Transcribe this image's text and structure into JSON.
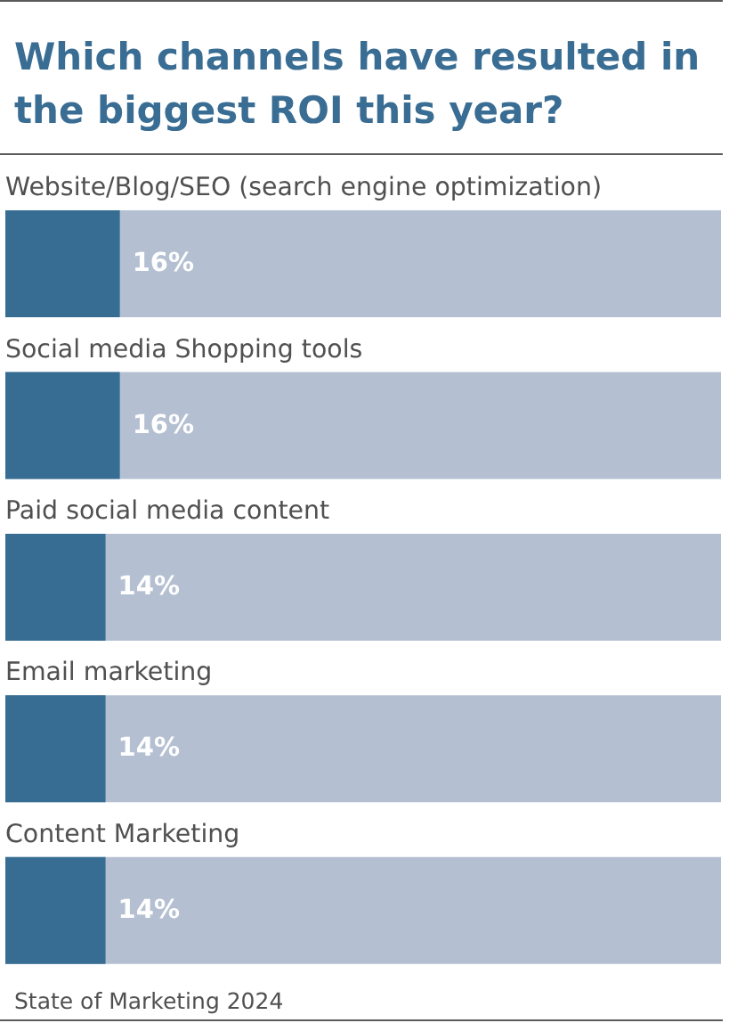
{
  "chart_data": {
    "type": "bar",
    "orientation": "horizontal",
    "title": "Which channels have resulted in the biggest ROI this year?",
    "categories": [
      "Website/Blog/SEO (search engine optimization)",
      "Social media Shopping tools",
      "Paid social media content",
      "Email marketing",
      "Content Marketing"
    ],
    "values": [
      16,
      16,
      14,
      14,
      14
    ],
    "value_labels": [
      "16%",
      "16%",
      "14%",
      "14%",
      "14%"
    ],
    "color": "#376d92",
    "xlim": [
      0,
      100
    ],
    "tick_labels": "y",
    "annotations": [
      "State of Marketing 2024"
    ]
  }
}
